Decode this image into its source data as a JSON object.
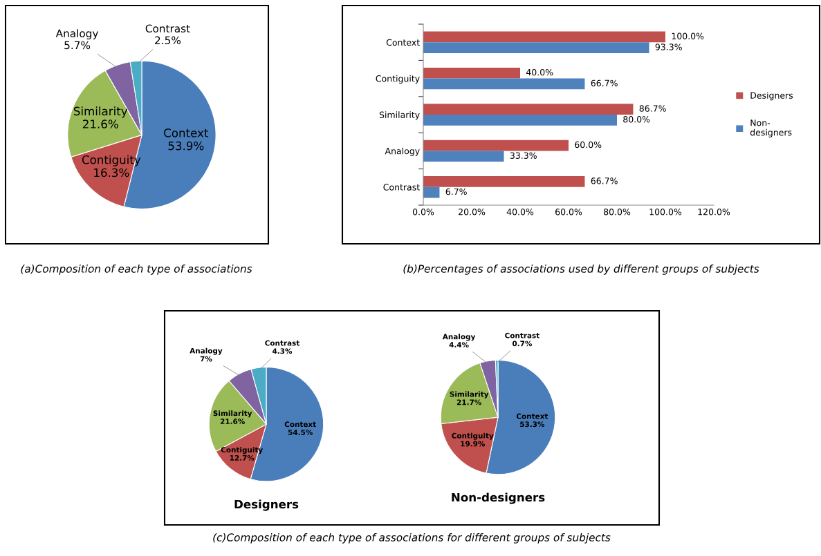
{
  "chart_data": [
    {
      "type": "pie",
      "categories": [
        "Context",
        "Contiguity",
        "Similarity",
        "Analogy",
        "Contrast"
      ],
      "values": [
        53.9,
        16.3,
        21.6,
        5.7,
        2.5
      ],
      "value_labels": [
        "53.9%",
        "16.3%",
        "21.6%",
        "5.7%",
        "2.5%"
      ],
      "colors": [
        "#4a7ebb",
        "#c0504d",
        "#9bbb59",
        "#8064a2",
        "#4bacc6"
      ],
      "annotations": [
        "(a)Composition of each type of associations"
      ]
    },
    {
      "type": "bar",
      "orientation": "horizontal",
      "categories": [
        "Context",
        "Contiguity",
        "Similarity",
        "Analogy",
        "Contrast"
      ],
      "series": [
        {
          "name": "Designers",
          "color": "#c0504d",
          "values": [
            100.0,
            40.0,
            86.7,
            60.0,
            66.7
          ],
          "value_labels": [
            "100.0%",
            "40.0%",
            "86.7%",
            "60.0%",
            "66.7%"
          ]
        },
        {
          "name": "Non-designers",
          "color": "#4f81bd",
          "values": [
            93.3,
            66.7,
            80.0,
            33.3,
            6.7
          ],
          "value_labels": [
            "93.3%",
            "66.7%",
            "80.0%",
            "33.3%",
            "6.7%"
          ]
        }
      ],
      "xlim": [
        0,
        120
      ],
      "xticks": [
        {
          "value": 0,
          "label": "0.0%"
        },
        {
          "value": 20,
          "label": "20.0%"
        },
        {
          "value": 40,
          "label": "40.0%"
        },
        {
          "value": 60,
          "label": "60.0%"
        },
        {
          "value": 80,
          "label": "80.0%"
        },
        {
          "value": 100,
          "label": "100.0%"
        },
        {
          "value": 120,
          "label": "120.0%"
        }
      ],
      "grid": false,
      "legend": "right",
      "annotations": [
        "(b)Percentages of associations used by different groups of subjects"
      ]
    },
    {
      "type": "pie",
      "title": "Designers",
      "categories": [
        "Context",
        "Contiguity",
        "Similarity",
        "Analogy",
        "Contrast"
      ],
      "values": [
        54.5,
        12.7,
        21.6,
        7,
        4.3
      ],
      "value_labels": [
        "54.5%",
        "12.7%",
        "21.6%",
        "7%",
        "4.3%"
      ],
      "colors": [
        "#4a7ebb",
        "#c0504d",
        "#9bbb59",
        "#8064a2",
        "#4bacc6"
      ],
      "annotations": [
        "(c)Composition of each type of associations for different groups of subjects"
      ]
    },
    {
      "type": "pie",
      "title": "Non-designers",
      "categories": [
        "Context",
        "Contiguity",
        "Similarity",
        "Analogy",
        "Contrast"
      ],
      "values": [
        53.3,
        19.9,
        21.7,
        4.4,
        0.7
      ],
      "value_labels": [
        "53.3%",
        "19.9%",
        "21.7%",
        "4.4%",
        "0.7%"
      ],
      "colors": [
        "#4a7ebb",
        "#c0504d",
        "#9bbb59",
        "#8064a2",
        "#4bacc6"
      ]
    }
  ]
}
